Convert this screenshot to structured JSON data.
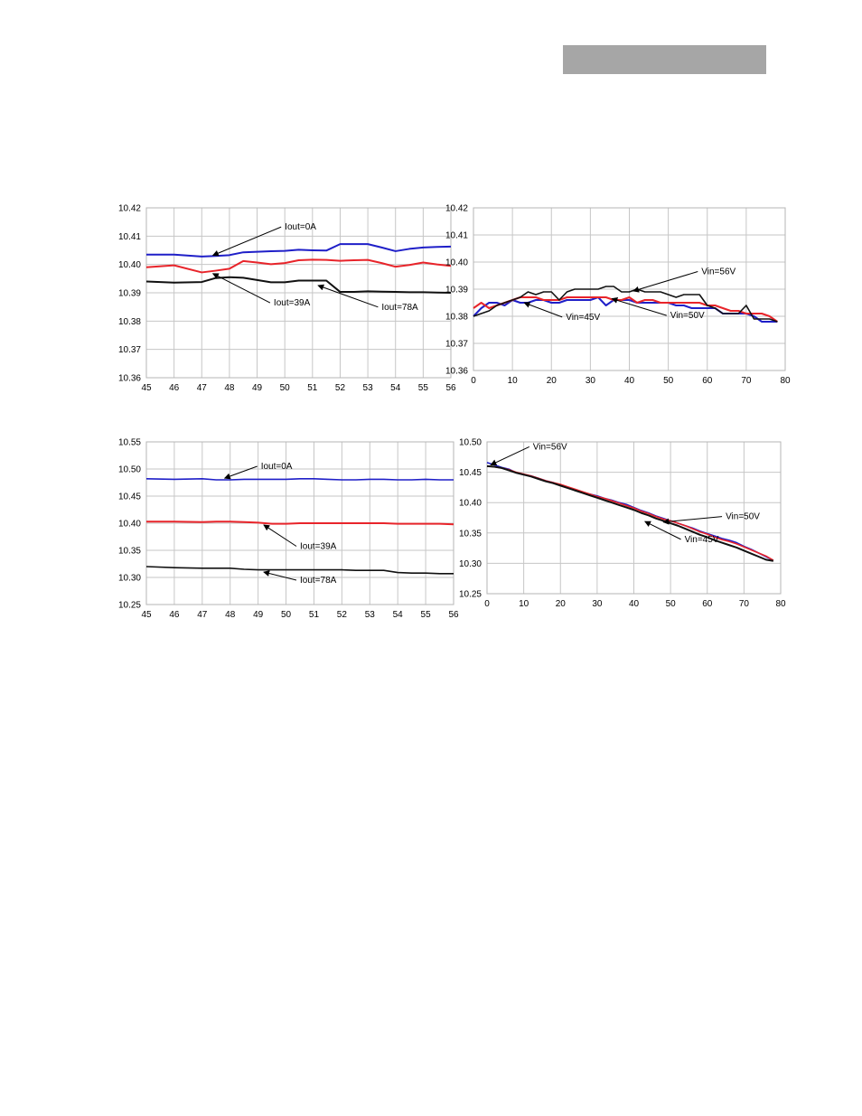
{
  "header": {
    "bar_color": "#a6a6a6"
  },
  "colors": {
    "blue": "#1f1fc8",
    "red": "#e8242a",
    "black": "#111111",
    "grid": "#c6c6c6"
  },
  "chart_data": [
    {
      "id": "tl",
      "type": "line",
      "grid": true,
      "x": [
        45,
        46,
        47,
        47.5,
        48,
        48.5,
        49,
        49.5,
        50,
        50.5,
        51,
        51.5,
        52,
        52.5,
        53,
        53.5,
        54,
        54.5,
        55,
        55.5,
        56
      ],
      "xticks": [
        45,
        46,
        47,
        48,
        49,
        50,
        51,
        52,
        53,
        54,
        55,
        56
      ],
      "xtick_labels": [
        "45",
        "46",
        "47",
        "48",
        "49",
        "50",
        "51",
        "52",
        "53",
        "54",
        "55",
        "56"
      ],
      "xlim": [
        45,
        56
      ],
      "ylim": [
        10.36,
        10.42
      ],
      "yticks": [
        10.36,
        10.37,
        10.38,
        10.39,
        10.4,
        10.41,
        10.42
      ],
      "ytick_labels": [
        "10.36",
        "10.37",
        "10.38",
        "10.39",
        "10.40",
        "10.41",
        "10.42"
      ],
      "series": [
        {
          "color": "blue",
          "width": 2,
          "values": [
            10.4035,
            10.4035,
            10.4028,
            10.403,
            10.4033,
            10.4043,
            10.4045,
            10.4047,
            10.4048,
            10.4052,
            10.405,
            10.4049,
            10.4072,
            10.4072,
            10.4072,
            10.406,
            10.4047,
            10.4055,
            10.406,
            10.4062,
            10.4063
          ]
        },
        {
          "color": "red",
          "width": 2,
          "values": [
            10.399,
            10.3997,
            10.3972,
            10.3978,
            10.3985,
            10.4012,
            10.4007,
            10.4001,
            10.4005,
            10.4015,
            10.4017,
            10.4016,
            10.4013,
            10.4015,
            10.4016,
            10.4005,
            10.3992,
            10.3998,
            10.4007,
            10.4,
            10.3995
          ]
        },
        {
          "color": "black",
          "width": 2,
          "values": [
            10.394,
            10.3936,
            10.3938,
            10.3952,
            10.3955,
            10.3953,
            10.3945,
            10.3937,
            10.3937,
            10.3943,
            10.3943,
            10.3943,
            10.3903,
            10.3903,
            10.3905,
            10.3904,
            10.3903,
            10.3902,
            10.3902,
            10.3901,
            10.39
          ]
        }
      ],
      "annotations": [
        {
          "text": "Iout=0A",
          "x": 50.0,
          "y": 10.4123,
          "ax": 47.4,
          "ay": 10.4032
        },
        {
          "text": "Iout=39A",
          "x": 49.6,
          "y": 10.3855,
          "ax": 47.4,
          "ay": 10.3968
        },
        {
          "text": "Iout=78A",
          "x": 53.5,
          "y": 10.384,
          "ax": 51.2,
          "ay": 10.3926
        }
      ]
    },
    {
      "id": "tr",
      "type": "line",
      "grid": true,
      "x": [
        0,
        2,
        4,
        6,
        8,
        10,
        12,
        14,
        16,
        18,
        20,
        22,
        24,
        26,
        28,
        30,
        32,
        34,
        36,
        38,
        40,
        42,
        44,
        46,
        48,
        50,
        52,
        54,
        56,
        58,
        60,
        62,
        64,
        66,
        68,
        70,
        72,
        74,
        76,
        78
      ],
      "xticks": [
        0,
        10,
        20,
        30,
        40,
        50,
        60,
        70,
        80
      ],
      "xtick_labels": [
        "0",
        "10",
        "20",
        "30",
        "40",
        "50",
        "60",
        "70",
        "80"
      ],
      "xlim": [
        0,
        80
      ],
      "ylim": [
        10.36,
        10.42
      ],
      "yticks": [
        10.36,
        10.37,
        10.38,
        10.39,
        10.4,
        10.41,
        10.42
      ],
      "ytick_labels": [
        "10.36",
        "10.37",
        "10.38",
        "10.39",
        "10.40",
        "10.41",
        "10.42"
      ],
      "series": [
        {
          "color": "blue",
          "width": 2,
          "values": [
            10.38,
            10.383,
            10.385,
            10.385,
            10.384,
            10.386,
            10.385,
            10.385,
            10.386,
            10.386,
            10.385,
            10.385,
            10.386,
            10.386,
            10.386,
            10.386,
            10.387,
            10.384,
            10.386,
            10.386,
            10.386,
            10.385,
            10.385,
            10.385,
            10.385,
            10.385,
            10.384,
            10.384,
            10.383,
            10.383,
            10.383,
            10.383,
            10.381,
            10.381,
            10.381,
            10.381,
            10.38,
            10.378,
            10.378,
            10.378
          ]
        },
        {
          "color": "red",
          "width": 2,
          "values": [
            10.383,
            10.385,
            10.383,
            10.384,
            10.385,
            10.386,
            10.387,
            10.387,
            10.387,
            10.386,
            10.386,
            10.386,
            10.387,
            10.387,
            10.387,
            10.387,
            10.387,
            10.387,
            10.386,
            10.386,
            10.387,
            10.385,
            10.386,
            10.386,
            10.385,
            10.385,
            10.385,
            10.385,
            10.385,
            10.385,
            10.384,
            10.384,
            10.383,
            10.382,
            10.382,
            10.381,
            10.381,
            10.381,
            10.38,
            10.378
          ]
        },
        {
          "color": "black",
          "width": 1.6,
          "values": [
            10.38,
            10.381,
            10.382,
            10.384,
            10.385,
            10.386,
            10.387,
            10.389,
            10.388,
            10.389,
            10.389,
            10.386,
            10.389,
            10.39,
            10.39,
            10.39,
            10.39,
            10.391,
            10.391,
            10.389,
            10.389,
            10.39,
            10.389,
            10.389,
            10.389,
            10.388,
            10.387,
            10.388,
            10.388,
            10.388,
            10.384,
            10.383,
            10.381,
            10.381,
            10.381,
            10.384,
            10.379,
            10.379,
            10.379,
            10.378
          ]
        }
      ],
      "annotations": [
        {
          "text": "Vin=56V",
          "x": 58.5,
          "y": 10.3955,
          "ax": 41.0,
          "ay": 10.3893
        },
        {
          "text": "Vin=45V",
          "x": 23.7,
          "y": 10.3787,
          "ax": 13.0,
          "ay": 10.385
        },
        {
          "text": "Vin=50V",
          "x": 50.5,
          "y": 10.3793,
          "ax": 35.5,
          "ay": 10.3865
        }
      ]
    },
    {
      "id": "bl",
      "type": "line",
      "grid": true,
      "x": [
        45,
        46,
        47,
        47.5,
        48,
        48.5,
        49,
        49.5,
        50,
        50.5,
        51,
        51.5,
        52,
        52.5,
        53,
        53.5,
        54,
        54.5,
        55,
        55.5,
        56
      ],
      "xticks": [
        45,
        46,
        47,
        48,
        49,
        50,
        51,
        52,
        53,
        54,
        55,
        56
      ],
      "xtick_labels": [
        "45",
        "46",
        "47",
        "48",
        "49",
        "50",
        "51",
        "52",
        "53",
        "54",
        "55",
        "56"
      ],
      "xlim": [
        45,
        56
      ],
      "ylim": [
        10.25,
        10.55
      ],
      "yticks": [
        10.25,
        10.3,
        10.35,
        10.4,
        10.45,
        10.5,
        10.55
      ],
      "ytick_labels": [
        "10.25",
        "10.30",
        "10.35",
        "10.40",
        "10.45",
        "10.50",
        "10.55"
      ],
      "series": [
        {
          "color": "blue",
          "width": 1.6,
          "values": [
            10.482,
            10.481,
            10.482,
            10.48,
            10.48,
            10.481,
            10.481,
            10.481,
            10.481,
            10.482,
            10.482,
            10.481,
            10.48,
            10.48,
            10.481,
            10.481,
            10.48,
            10.48,
            10.481,
            10.48,
            10.48
          ]
        },
        {
          "color": "red",
          "width": 2,
          "values": [
            10.403,
            10.403,
            10.402,
            10.403,
            10.403,
            10.402,
            10.401,
            10.399,
            10.399,
            10.4,
            10.4,
            10.4,
            10.4,
            10.4,
            10.4,
            10.4,
            10.399,
            10.399,
            10.399,
            10.399,
            10.398
          ]
        },
        {
          "color": "black",
          "width": 1.6,
          "values": [
            10.32,
            10.318,
            10.317,
            10.317,
            10.317,
            10.315,
            10.314,
            10.314,
            10.314,
            10.314,
            10.314,
            10.314,
            10.314,
            10.313,
            10.313,
            10.313,
            10.309,
            10.308,
            10.308,
            10.307,
            10.307
          ]
        }
      ],
      "annotations": [
        {
          "text": "Iout=0A",
          "x": 49.1,
          "y": 10.5,
          "ax": 47.8,
          "ay": 10.483
        },
        {
          "text": "Iout=39A",
          "x": 50.5,
          "y": 10.3525,
          "ax": 49.2,
          "ay": 10.397
        },
        {
          "text": "Iout=78A",
          "x": 50.5,
          "y": 10.29,
          "ax": 49.2,
          "ay": 10.31
        }
      ]
    },
    {
      "id": "br",
      "type": "line",
      "grid": true,
      "x": [
        0,
        2,
        4,
        6,
        8,
        10,
        12,
        14,
        16,
        18,
        20,
        22,
        24,
        26,
        28,
        30,
        32,
        34,
        36,
        38,
        40,
        42,
        44,
        46,
        48,
        50,
        52,
        54,
        56,
        58,
        60,
        62,
        64,
        66,
        68,
        70,
        72,
        74,
        76,
        78
      ],
      "xticks": [
        0,
        10,
        20,
        30,
        40,
        50,
        60,
        70,
        80
      ],
      "xtick_labels": [
        "0",
        "10",
        "20",
        "30",
        "40",
        "50",
        "60",
        "70",
        "80"
      ],
      "xlim": [
        0,
        80
      ],
      "ylim": [
        10.25,
        10.5
      ],
      "yticks": [
        10.25,
        10.3,
        10.35,
        10.4,
        10.45,
        10.5
      ],
      "ytick_labels": [
        "10.25",
        "10.30",
        "10.35",
        "10.40",
        "10.45",
        "10.50"
      ],
      "series": [
        {
          "color": "blue",
          "width": 1.6,
          "values": [
            10.466,
            10.462,
            10.458,
            10.455,
            10.449,
            10.446,
            10.444,
            10.44,
            10.436,
            10.433,
            10.428,
            10.425,
            10.421,
            10.417,
            10.414,
            10.411,
            10.407,
            10.404,
            10.4,
            10.397,
            10.392,
            10.387,
            10.383,
            10.378,
            10.374,
            10.37,
            10.366,
            10.362,
            10.358,
            10.353,
            10.349,
            10.345,
            10.341,
            10.338,
            10.334,
            10.328,
            10.323,
            10.317,
            10.311,
            10.305
          ]
        },
        {
          "color": "red",
          "width": 1.6,
          "values": [
            10.46,
            10.459,
            10.457,
            10.454,
            10.45,
            10.447,
            10.444,
            10.44,
            10.436,
            10.433,
            10.43,
            10.426,
            10.422,
            10.418,
            10.414,
            10.41,
            10.407,
            10.403,
            10.399,
            10.395,
            10.391,
            10.386,
            10.382,
            10.377,
            10.373,
            10.37,
            10.366,
            10.362,
            10.357,
            10.352,
            10.348,
            10.343,
            10.339,
            10.336,
            10.332,
            10.327,
            10.322,
            10.317,
            10.312,
            10.305
          ]
        },
        {
          "color": "black",
          "width": 2,
          "values": [
            10.46,
            10.459,
            10.457,
            10.453,
            10.449,
            10.446,
            10.443,
            10.439,
            10.435,
            10.432,
            10.428,
            10.424,
            10.42,
            10.416,
            10.412,
            10.408,
            10.404,
            10.4,
            10.396,
            10.392,
            10.388,
            10.383,
            10.379,
            10.374,
            10.37,
            10.366,
            10.362,
            10.357,
            10.352,
            10.347,
            10.343,
            10.338,
            10.334,
            10.33,
            10.326,
            10.321,
            10.316,
            10.311,
            10.306,
            10.304
          ]
        }
      ],
      "annotations": [
        {
          "text": "Vin=56V",
          "x": 12.5,
          "y": 10.4875,
          "ax": 1.0,
          "ay": 10.462
        },
        {
          "text": "Vin=50V",
          "x": 65.0,
          "y": 10.3725,
          "ax": 48.0,
          "ay": 10.368
        },
        {
          "text": "Vin=45V",
          "x": 53.8,
          "y": 10.335,
          "ax": 43.0,
          "ay": 10.369
        }
      ]
    }
  ]
}
